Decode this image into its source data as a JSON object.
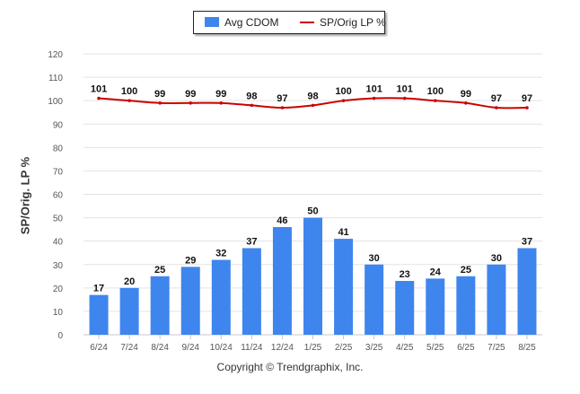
{
  "chart_data": {
    "type": "bar",
    "categories": [
      "6/24",
      "7/24",
      "8/24",
      "9/24",
      "10/24",
      "11/24",
      "12/24",
      "1/25",
      "2/25",
      "3/25",
      "4/25",
      "5/25",
      "6/25",
      "7/25",
      "8/25"
    ],
    "series": [
      {
        "name": "Avg CDOM",
        "type": "bar",
        "color": "#3f85ee",
        "values": [
          17,
          20,
          25,
          29,
          32,
          37,
          46,
          50,
          41,
          30,
          23,
          24,
          25,
          30,
          37
        ]
      },
      {
        "name": "SP/Orig LP %",
        "type": "line",
        "color": "#cc0000",
        "values": [
          101,
          100,
          99,
          99,
          99,
          98,
          97,
          98,
          100,
          101,
          101,
          100,
          99,
          97,
          97
        ]
      }
    ],
    "ylabel": "SP/Orig. LP %",
    "ylim": [
      0,
      120
    ],
    "yticks": [
      0,
      10,
      20,
      30,
      40,
      50,
      60,
      70,
      80,
      90,
      100,
      110,
      120
    ],
    "grid": true,
    "legend_position": "top-center"
  },
  "footer": {
    "copyright": "Copyright © Trendgraphix, Inc."
  }
}
